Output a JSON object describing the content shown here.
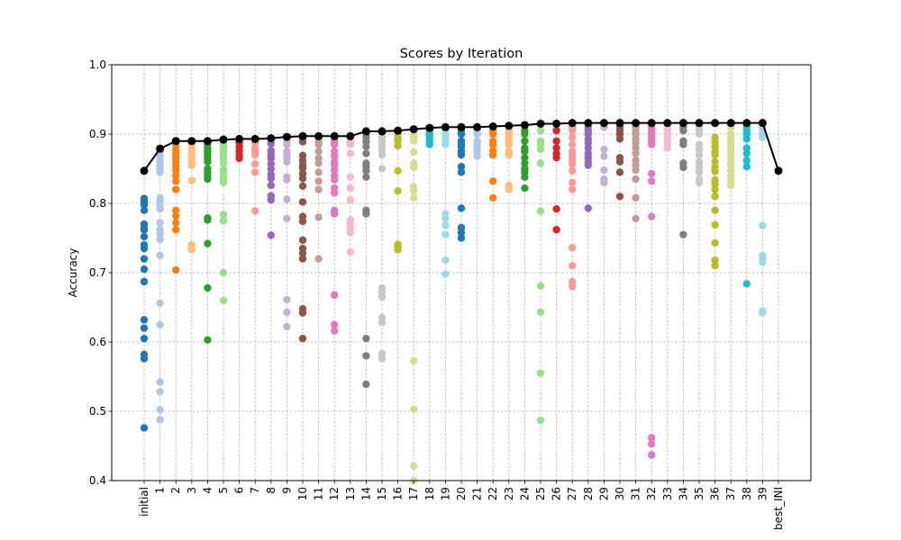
{
  "chart_data": {
    "type": "scatter",
    "title": "Scores by Iteration",
    "xlabel": "",
    "ylabel": "Accuracy",
    "ylim": [
      0.4,
      1.0
    ],
    "yticks": [
      "0.4",
      "0.5",
      "0.6",
      "0.7",
      "0.8",
      "0.9",
      "1.0"
    ],
    "grid": true,
    "categories": [
      "initial",
      "1",
      "2",
      "3",
      "4",
      "5",
      "6",
      "7",
      "8",
      "9",
      "10",
      "11",
      "12",
      "13",
      "14",
      "15",
      "16",
      "17",
      "18",
      "19",
      "20",
      "21",
      "22",
      "23",
      "24",
      "25",
      "26",
      "27",
      "28",
      "29",
      "30",
      "31",
      "32",
      "33",
      "34",
      "35",
      "36",
      "37",
      "38",
      "39",
      "best_INI"
    ],
    "colors": [
      "#1f77b4",
      "#aec7e8",
      "#ff7f0e",
      "#ffbb78",
      "#2ca02c",
      "#98df8a",
      "#d62728",
      "#ff9896",
      "#9467bd",
      "#c5b0d5",
      "#8c564b",
      "#c49c94",
      "#e377c2",
      "#f7b6d2",
      "#7f7f7f",
      "#c7c7c7",
      "#bcbd22",
      "#dbdb8d",
      "#17becf",
      "#9edae5"
    ],
    "scatter_values": [
      [
        0.807,
        0.803,
        0.798,
        0.79,
        0.77,
        0.765,
        0.762,
        0.752,
        0.74,
        0.735,
        0.72,
        0.705,
        0.687,
        0.632,
        0.62,
        0.605,
        0.582,
        0.576,
        0.476
      ],
      [
        0.875,
        0.87,
        0.865,
        0.86,
        0.855,
        0.85,
        0.845,
        0.808,
        0.803,
        0.797,
        0.792,
        0.772,
        0.762,
        0.756,
        0.748,
        0.725,
        0.656,
        0.625,
        0.542,
        0.528,
        0.502,
        0.488
      ],
      [
        0.89,
        0.884,
        0.877,
        0.872,
        0.866,
        0.86,
        0.854,
        0.848,
        0.84,
        0.832,
        0.82,
        0.79,
        0.782,
        0.772,
        0.762,
        0.704
      ],
      [
        0.89,
        0.885,
        0.878,
        0.872,
        0.866,
        0.86,
        0.855,
        0.833,
        0.74,
        0.733
      ],
      [
        0.89,
        0.885,
        0.88,
        0.875,
        0.87,
        0.865,
        0.86,
        0.85,
        0.845,
        0.84,
        0.835,
        0.779,
        0.776,
        0.742,
        0.678,
        0.603
      ],
      [
        0.893,
        0.888,
        0.882,
        0.876,
        0.87,
        0.865,
        0.858,
        0.849,
        0.843,
        0.837,
        0.83,
        0.784,
        0.775,
        0.7,
        0.66
      ],
      [
        0.893,
        0.888,
        0.882,
        0.876,
        0.87,
        0.865
      ],
      [
        0.893,
        0.888,
        0.88,
        0.875,
        0.87,
        0.857,
        0.845,
        0.789
      ],
      [
        0.893,
        0.886,
        0.876,
        0.87,
        0.865,
        0.857,
        0.85,
        0.842,
        0.836,
        0.826,
        0.811,
        0.805,
        0.754
      ],
      [
        0.895,
        0.89,
        0.885,
        0.875,
        0.87,
        0.865,
        0.86,
        0.838,
        0.834,
        0.806,
        0.778,
        0.661,
        0.643,
        0.622
      ],
      [
        0.895,
        0.889,
        0.869,
        0.862,
        0.855,
        0.851,
        0.843,
        0.836,
        0.825,
        0.802,
        0.781,
        0.774,
        0.747,
        0.735,
        0.728,
        0.72,
        0.648,
        0.642,
        0.605
      ],
      [
        0.895,
        0.89,
        0.885,
        0.875,
        0.865,
        0.858,
        0.845,
        0.832,
        0.82,
        0.78,
        0.72
      ],
      [
        0.895,
        0.89,
        0.885,
        0.875,
        0.868,
        0.86,
        0.855,
        0.848,
        0.84,
        0.834,
        0.822,
        0.815,
        0.79,
        0.785,
        0.668,
        0.625,
        0.616
      ],
      [
        0.895,
        0.89,
        0.885,
        0.872,
        0.838,
        0.822,
        0.805,
        0.776,
        0.771,
        0.765,
        0.758,
        0.73
      ],
      [
        0.9,
        0.895,
        0.889,
        0.882,
        0.872,
        0.858,
        0.853,
        0.847,
        0.838,
        0.79,
        0.785,
        0.605,
        0.58,
        0.539
      ],
      [
        0.9,
        0.895,
        0.89,
        0.883,
        0.877,
        0.87,
        0.85,
        0.678,
        0.672,
        0.665,
        0.635,
        0.628,
        0.583,
        0.576
      ],
      [
        0.9,
        0.895,
        0.89,
        0.883,
        0.847,
        0.818,
        0.741,
        0.738,
        0.733
      ],
      [
        0.9,
        0.895,
        0.89,
        0.874,
        0.858,
        0.852,
        0.824,
        0.818,
        0.808,
        0.573,
        0.503,
        0.421,
        0.4
      ],
      [
        0.905,
        0.9,
        0.895,
        0.89,
        0.885
      ],
      [
        0.905,
        0.9,
        0.895,
        0.89,
        0.885,
        0.785,
        0.778,
        0.768,
        0.755,
        0.718,
        0.698
      ],
      [
        0.905,
        0.9,
        0.89,
        0.886,
        0.882,
        0.875,
        0.87,
        0.853,
        0.845,
        0.793,
        0.765,
        0.758,
        0.75
      ],
      [
        0.905,
        0.9,
        0.89,
        0.885,
        0.88,
        0.875,
        0.868
      ],
      [
        0.905,
        0.9,
        0.89,
        0.885,
        0.876,
        0.87,
        0.832,
        0.808
      ],
      [
        0.905,
        0.9,
        0.895,
        0.89,
        0.885,
        0.875,
        0.87,
        0.826,
        0.82
      ],
      [
        0.905,
        0.9,
        0.89,
        0.88,
        0.875,
        0.866,
        0.858,
        0.85,
        0.845,
        0.838,
        0.822
      ],
      [
        0.905,
        0.89,
        0.885,
        0.878,
        0.858,
        0.789,
        0.681,
        0.643,
        0.555,
        0.487
      ],
      [
        0.905,
        0.89,
        0.88,
        0.872,
        0.866,
        0.792,
        0.762
      ],
      [
        0.91,
        0.905,
        0.895,
        0.885,
        0.875,
        0.868,
        0.862,
        0.857,
        0.847,
        0.83,
        0.82,
        0.736,
        0.71,
        0.687,
        0.68
      ],
      [
        0.91,
        0.905,
        0.9,
        0.893,
        0.887,
        0.88,
        0.872,
        0.866,
        0.86,
        0.855,
        0.793
      ],
      [
        0.915,
        0.91,
        0.878,
        0.868,
        0.848,
        0.835,
        0.83
      ],
      [
        0.91,
        0.905,
        0.9,
        0.893,
        0.866,
        0.86,
        0.845,
        0.81
      ],
      [
        0.91,
        0.905,
        0.9,
        0.893,
        0.887,
        0.88,
        0.872,
        0.862,
        0.855,
        0.848,
        0.835,
        0.808,
        0.778
      ],
      [
        0.915,
        0.91,
        0.905,
        0.9,
        0.895,
        0.89,
        0.885,
        0.843,
        0.832,
        0.781,
        0.462,
        0.453,
        0.437
      ],
      [
        0.915,
        0.91,
        0.905,
        0.9,
        0.893,
        0.887,
        0.88
      ],
      [
        0.915,
        0.91,
        0.905,
        0.89,
        0.885,
        0.858,
        0.852,
        0.755
      ],
      [
        0.915,
        0.91,
        0.905,
        0.9,
        0.885,
        0.878,
        0.87,
        0.86,
        0.853,
        0.845,
        0.835,
        0.83
      ],
      [
        0.895,
        0.888,
        0.882,
        0.875,
        0.87,
        0.86,
        0.852,
        0.846,
        0.834,
        0.828,
        0.82,
        0.81,
        0.79,
        0.769,
        0.743,
        0.718,
        0.71
      ],
      [
        0.915,
        0.91,
        0.9,
        0.893,
        0.887,
        0.88,
        0.874,
        0.867,
        0.86,
        0.855,
        0.848,
        0.84,
        0.833,
        0.826
      ],
      [
        0.915,
        0.91,
        0.905,
        0.9,
        0.893,
        0.88,
        0.872,
        0.862,
        0.853,
        0.684
      ],
      [
        0.915,
        0.91,
        0.905,
        0.9,
        0.895,
        0.768,
        0.725,
        0.72,
        0.715,
        0.645,
        0.642
      ]
    ],
    "best_line": {
      "x": [
        "initial",
        "1",
        "2",
        "3",
        "4",
        "5",
        "6",
        "7",
        "8",
        "9",
        "10",
        "11",
        "12",
        "13",
        "14",
        "15",
        "16",
        "17",
        "18",
        "19",
        "20",
        "21",
        "22",
        "23",
        "24",
        "25",
        "26",
        "27",
        "28",
        "29",
        "30",
        "31",
        "32",
        "33",
        "34",
        "35",
        "36",
        "37",
        "38",
        "39",
        "best_INI"
      ],
      "y": [
        0.847,
        0.879,
        0.89,
        0.89,
        0.89,
        0.892,
        0.893,
        0.893,
        0.894,
        0.896,
        0.897,
        0.897,
        0.897,
        0.897,
        0.904,
        0.904,
        0.905,
        0.907,
        0.909,
        0.91,
        0.91,
        0.91,
        0.911,
        0.912,
        0.913,
        0.915,
        0.915,
        0.916,
        0.916,
        0.916,
        0.916,
        0.916,
        0.916,
        0.916,
        0.916,
        0.916,
        0.916,
        0.916,
        0.916,
        0.916,
        0.847
      ],
      "color": "#000000"
    }
  }
}
